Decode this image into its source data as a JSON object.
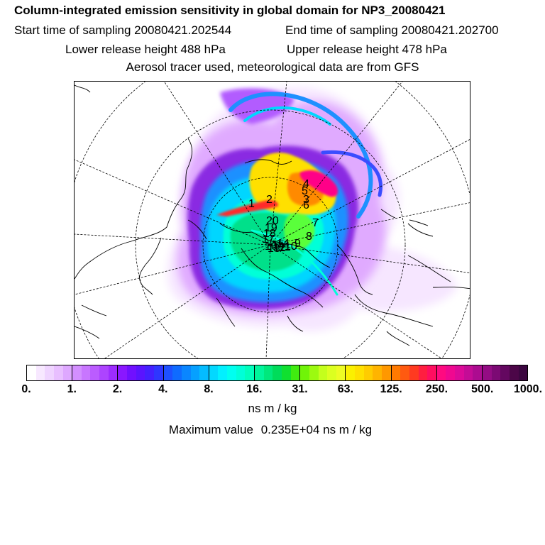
{
  "header": {
    "title": "Column-integrated emission sensitivity in global domain for NP3_20080421",
    "start_sampling": "Start time of sampling 20080421.202544",
    "end_sampling": "End time of sampling 20080421.202700",
    "lower_release": "Lower release height  488 hPa",
    "upper_release": "Upper release height  478 hPa",
    "tracer_note": "Aerosol tracer used, meteorological data are from GFS"
  },
  "map": {
    "projection": "north polar stereographic",
    "release_labels": [
      "1",
      "2",
      "3",
      "4",
      "5",
      "6",
      "7",
      "8",
      "9",
      "10",
      "11",
      "12",
      "13",
      "14",
      "15",
      "16",
      "17",
      "18",
      "19",
      "20"
    ],
    "field_colors": [
      "#ffffff",
      "#f6e6ff",
      "#e0aaff",
      "#b25cff",
      "#8a2be2",
      "#3a4dff",
      "#1e90ff",
      "#00d6ff",
      "#00ffd8",
      "#00e08a",
      "#5aff3a",
      "#d6ff2a",
      "#ffe000",
      "#ff8a00",
      "#ff2a2a",
      "#ff0088",
      "#c8007a"
    ]
  },
  "colorbar": {
    "colors": [
      "#ffffff",
      "#f7e8ff",
      "#efd4ff",
      "#e8bfff",
      "#dea8ff",
      "#d38fff",
      "#c876ff",
      "#bb5cff",
      "#ad44ff",
      "#9d2cff",
      "#8a17ff",
      "#7010ff",
      "#5a14ff",
      "#4420ff",
      "#2e36ff",
      "#1e50ff",
      "#0f6bff",
      "#0a86ff",
      "#06a0ff",
      "#04bcff",
      "#03d8ff",
      "#02f0ff",
      "#00fff0",
      "#00ffd8",
      "#00ffbc",
      "#00f59c",
      "#00e87c",
      "#00dc5a",
      "#10e030",
      "#40ec10",
      "#70f408",
      "#9cfa10",
      "#c4ff1c",
      "#dcff20",
      "#eefc24",
      "#fbf000",
      "#ffe000",
      "#ffcc00",
      "#ffb400",
      "#ff9800",
      "#ff7a00",
      "#ff5a10",
      "#ff3a20",
      "#ff1e40",
      "#ff0e60",
      "#ff0a80",
      "#f00890",
      "#dc0a98",
      "#c40c96",
      "#ac0c90",
      "#940c84",
      "#7c0a74",
      "#640860",
      "#4c0648",
      "#3c0640"
    ],
    "ticks": [
      "0.",
      "1.",
      "2.",
      "4.",
      "8.",
      "16.",
      "31.",
      "63.",
      "125.",
      "250.",
      "500.",
      "1000."
    ],
    "unit": "ns m / kg"
  },
  "max_value": {
    "label": "Maximum value",
    "value": "0.235E+04 ns m / kg"
  }
}
